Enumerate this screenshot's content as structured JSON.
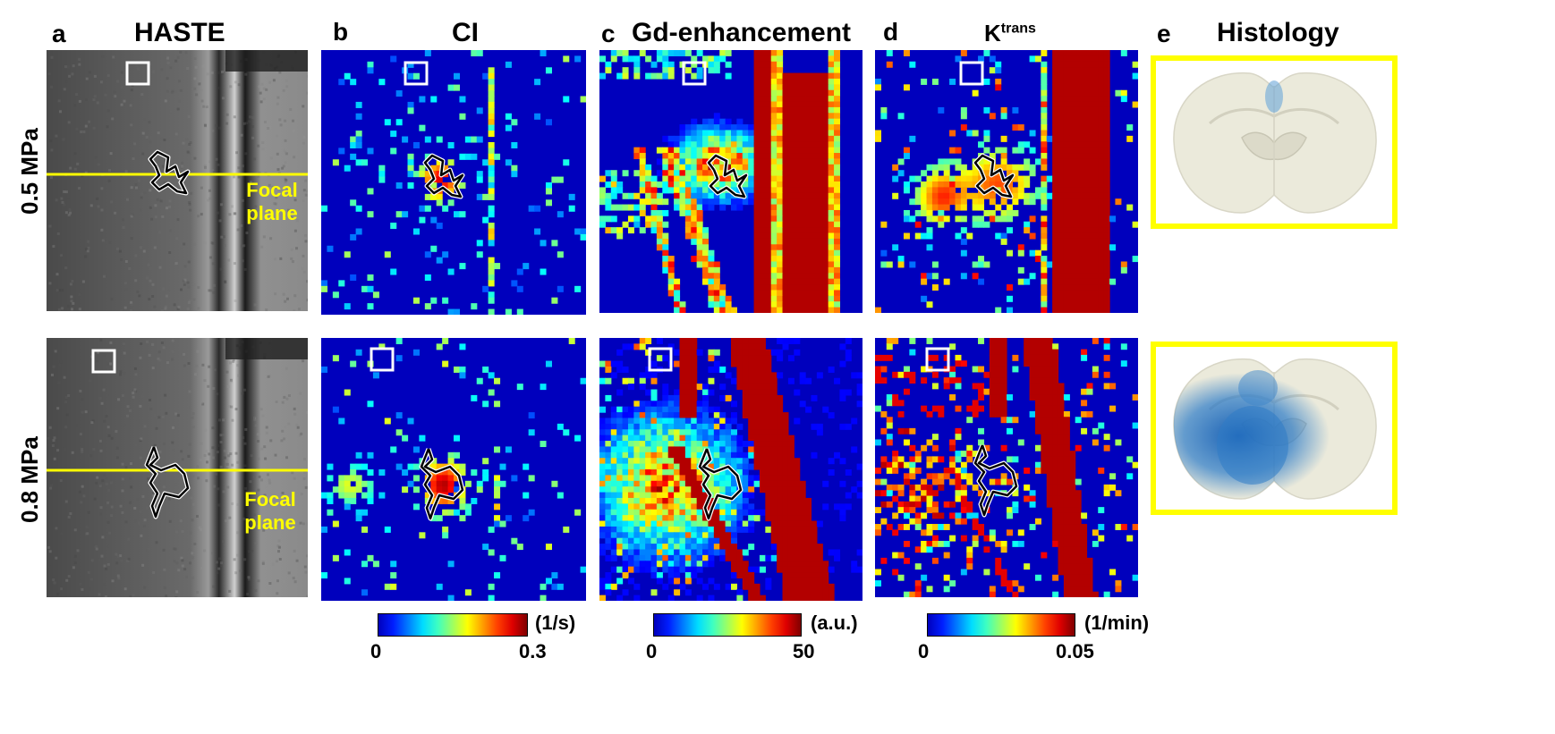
{
  "panels": [
    {
      "letter": "a",
      "title": "HASTE"
    },
    {
      "letter": "b",
      "title": "CI"
    },
    {
      "letter": "c",
      "title": "Gd-enhancement"
    },
    {
      "letter": "d",
      "title": "K",
      "title_sup": "trans"
    },
    {
      "letter": "e",
      "title": "Histology"
    }
  ],
  "rows": [
    {
      "label": "0.5 MPa",
      "focal_line1": "Focal",
      "focal_line2": "plane"
    },
    {
      "label": "0.8 MPa",
      "focal_line1": "Focal",
      "focal_line2": "plane"
    }
  ],
  "colorbars": [
    {
      "min": "0",
      "max": "0.3",
      "unit": "(1/s)"
    },
    {
      "min": "0",
      "max": "50",
      "unit": "(a.u.)"
    },
    {
      "min": "0",
      "max": "0.05",
      "unit": "(1/min)"
    }
  ],
  "colors": {
    "focal_line": "#ffff00",
    "histology_frame": "#ffff00",
    "jet_low": "#00008f",
    "jet_high": "#800000",
    "stain_blue": "#1f6fc0"
  }
}
